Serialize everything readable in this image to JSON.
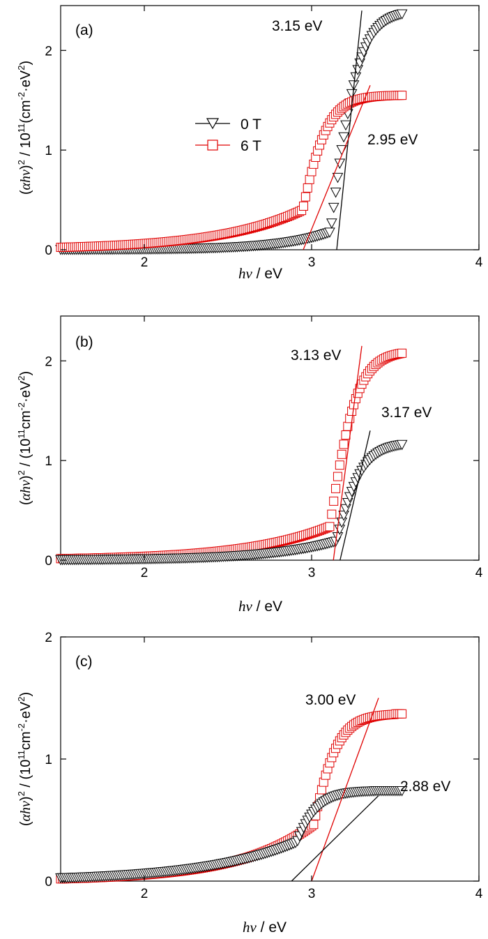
{
  "colors": {
    "zero_t": "#000000",
    "six_t": "#e00000",
    "axis": "#000000"
  },
  "legend": {
    "entries": [
      {
        "label": "0 T",
        "marker": "triangle-down"
      },
      {
        "label": "6 T",
        "marker": "square"
      }
    ]
  },
  "chart_data": [
    {
      "type": "scatter",
      "panel_label": "(a)",
      "xlabel": {
        "italic": "hν",
        "rest": " / eV"
      },
      "ylabel": {
        "paren_open": "(",
        "alpha": "α",
        "hv": "hν",
        "paren_close": ")",
        "sup1": "2",
        "mid": " / 10",
        "sup2": "11",
        "unit1": "(cm",
        "sup3": "-2",
        "unit2": "·eV",
        "sup4": "2",
        "end": ")"
      },
      "xlim": [
        1.5,
        4.0
      ],
      "ylim": [
        0,
        2.45
      ],
      "xticks": [
        2,
        3,
        4
      ],
      "yticks": [
        0,
        1,
        2
      ],
      "series": [
        {
          "name": "0 T",
          "marker": "triangle-down",
          "color": "#000000",
          "Eg": 3.15,
          "plateau": 2.4,
          "curv": 0.3,
          "scale": 0.2
        },
        {
          "name": "6 T",
          "marker": "square",
          "color": "#e00000",
          "Eg": 2.95,
          "plateau": 1.55,
          "curv": 0.5,
          "scale": 0.4
        }
      ],
      "fits": [
        {
          "color": "#000000",
          "x": [
            3.15,
            3.3
          ],
          "y": [
            0,
            2.4
          ]
        },
        {
          "color": "#e00000",
          "x": [
            2.95,
            3.35
          ],
          "y": [
            0,
            1.65
          ]
        }
      ],
      "annotations": [
        {
          "text": "3.15 eV",
          "near": "0 T fit top"
        },
        {
          "text": "2.95 eV",
          "near": "6 T fit right"
        }
      ],
      "legend": true
    },
    {
      "type": "scatter",
      "panel_label": "(b)",
      "xlabel": {
        "italic": "hν",
        "rest": " / eV"
      },
      "ylabel": {
        "paren_open": "(",
        "alpha": "α",
        "hv": "hν",
        "paren_close": ")",
        "sup1": "2",
        "mid": " / (10",
        "sup2": "11",
        "unit1": "cm",
        "sup3": "-2",
        "unit2": "·eV",
        "sup4": "2",
        "end": ")"
      },
      "xlim": [
        1.5,
        4.0
      ],
      "ylim": [
        0,
        2.45
      ],
      "xticks": [
        2,
        3,
        4
      ],
      "yticks": [
        0,
        1,
        2
      ],
      "series": [
        {
          "name": "6 T",
          "marker": "square",
          "color": "#e00000",
          "Eg": 3.13,
          "plateau": 2.1,
          "curv": 0.5,
          "scale": 0.35
        },
        {
          "name": "0 T",
          "marker": "triangle-down",
          "color": "#000000",
          "Eg": 3.17,
          "plateau": 1.18,
          "curv": 0.4,
          "scale": 0.2
        }
      ],
      "fits": [
        {
          "color": "#e00000",
          "x": [
            3.13,
            3.3
          ],
          "y": [
            0,
            2.15
          ]
        },
        {
          "color": "#000000",
          "x": [
            3.17,
            3.35
          ],
          "y": [
            0,
            1.3
          ]
        }
      ],
      "annotations": [
        {
          "text": "3.13 eV",
          "near": "6 T fit top"
        },
        {
          "text": "3.17 eV",
          "near": "0 T fit top"
        }
      ],
      "legend": false
    },
    {
      "type": "scatter",
      "panel_label": "(c)",
      "xlabel": {
        "italic": "hν",
        "rest": " / eV"
      },
      "ylabel": {
        "paren_open": "(",
        "alpha": "α",
        "hv": "hν",
        "paren_close": ")",
        "sup1": "2",
        "mid": " / (10",
        "sup2": "11",
        "unit1": "cm",
        "sup3": "-2",
        "unit2": "·eV",
        "sup4": "2",
        "end": ")"
      },
      "xlim": [
        1.5,
        4.0
      ],
      "ylim": [
        0,
        2.0
      ],
      "xticks": [
        2,
        3,
        4
      ],
      "yticks": [
        0,
        1,
        2
      ],
      "series": [
        {
          "name": "6 T",
          "marker": "square",
          "color": "#e00000",
          "Eg": 3.0,
          "plateau": 1.37,
          "curv": 0.45,
          "scale": 0.45
        },
        {
          "name": "0 T",
          "marker": "triangle-down",
          "color": "#000000",
          "Eg": 2.88,
          "plateau": 0.74,
          "curv": 0.55,
          "scale": 0.3
        }
      ],
      "fits": [
        {
          "color": "#e00000",
          "x": [
            3.0,
            3.4
          ],
          "y": [
            0,
            1.5
          ]
        },
        {
          "color": "#000000",
          "x": [
            2.88,
            3.4
          ],
          "y": [
            0,
            0.7
          ]
        }
      ],
      "annotations": [
        {
          "text": "3.00 eV",
          "near": "6 T fit top"
        },
        {
          "text": "2.88 eV",
          "near": "0 T fit top"
        }
      ],
      "legend": false
    }
  ]
}
